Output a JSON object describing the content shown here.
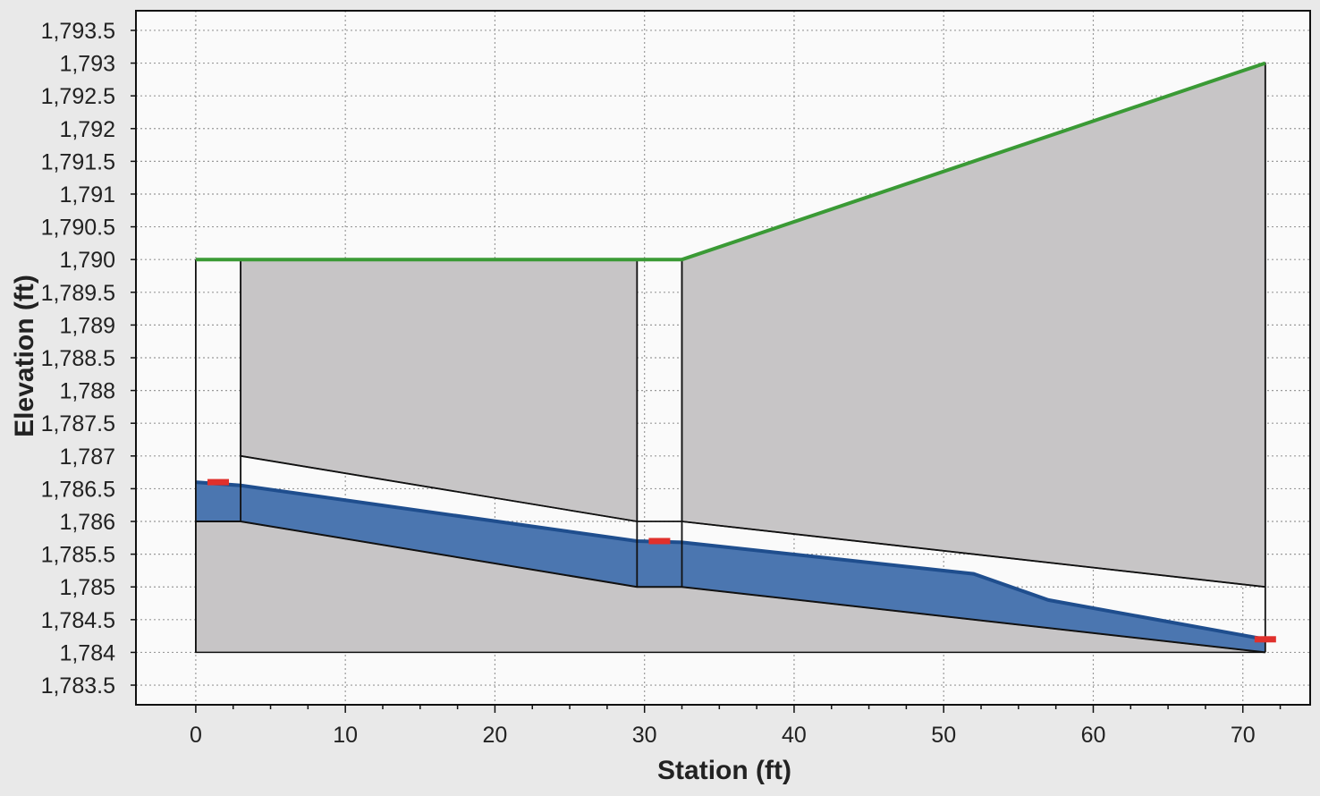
{
  "chart_data": {
    "type": "area",
    "title": "",
    "xlabel": "Station (ft)",
    "ylabel": "Elevation (ft)",
    "xlim": [
      -4,
      74.5
    ],
    "ylim": [
      1783.2,
      1793.8
    ],
    "xticks": [
      0,
      10,
      20,
      30,
      40,
      50,
      60,
      70
    ],
    "xtick_labels": [
      "0",
      "10",
      "20",
      "30",
      "40",
      "50",
      "60",
      "70"
    ],
    "yticks": [
      1783.5,
      1784,
      1784.5,
      1785,
      1785.5,
      1786,
      1786.5,
      1787,
      1787.5,
      1788,
      1788.5,
      1789,
      1789.5,
      1790,
      1790.5,
      1791,
      1791.5,
      1792,
      1792.5,
      1793,
      1793.5
    ],
    "ytick_labels": [
      "1,783.5",
      "1,784",
      "1,784.5",
      "1,785",
      "1,785.5",
      "1,786",
      "1,786.5",
      "1,787",
      "1,787.5",
      "1,788",
      "1,788.5",
      "1,789",
      "1,789.5",
      "1,790",
      "1,790.5",
      "1,791",
      "1,791.5",
      "1,792",
      "1,792.5",
      "1,793",
      "1,793.5"
    ],
    "grid": true,
    "colors": {
      "structure_fill": "#c7c5c6",
      "water_fill": "#4b76b0",
      "water_line": "#1f4e8e",
      "top_line": "#3a9a35",
      "marker": "#e0302c",
      "plot_background": "#fafafa",
      "outline": "#111111"
    },
    "series": [
      {
        "role": "structure-left-segment",
        "x": [
          3,
          29.5,
          29.5,
          3
        ],
        "y": [
          1790,
          1790,
          1786,
          1787
        ]
      },
      {
        "role": "structure-right-segment",
        "x": [
          32.5,
          71.5,
          71.5,
          32.5
        ],
        "y": [
          1790,
          1793,
          1785,
          1786
        ]
      },
      {
        "role": "ground-below-invert",
        "x": [
          0,
          3,
          29.5,
          32.5,
          71.5,
          0
        ],
        "y": [
          1786,
          1786,
          1785,
          1785,
          1784,
          1784
        ]
      },
      {
        "role": "top-of-embankment",
        "x": [
          0,
          29.5,
          32.5,
          71.5
        ],
        "y": [
          1790,
          1790,
          1790,
          1793
        ]
      },
      {
        "role": "water-surface",
        "x": [
          0,
          3,
          29.5,
          32.5,
          52,
          57,
          71.5
        ],
        "y": [
          1786.6,
          1786.55,
          1785.7,
          1785.68,
          1785.2,
          1784.8,
          1784.2
        ]
      },
      {
        "role": "channel-invert",
        "x": [
          0,
          3,
          29.5,
          32.5,
          71.5
        ],
        "y": [
          1786,
          1786,
          1785,
          1785,
          1784
        ]
      },
      {
        "role": "crown-line",
        "x": [
          3,
          29.5,
          32.5,
          71.5
        ],
        "y": [
          1787,
          1786,
          1786,
          1785
        ]
      },
      {
        "role": "station-markers",
        "x": [
          1.5,
          31,
          71.5
        ],
        "y": [
          1786.6,
          1785.7,
          1784.2
        ]
      }
    ]
  }
}
